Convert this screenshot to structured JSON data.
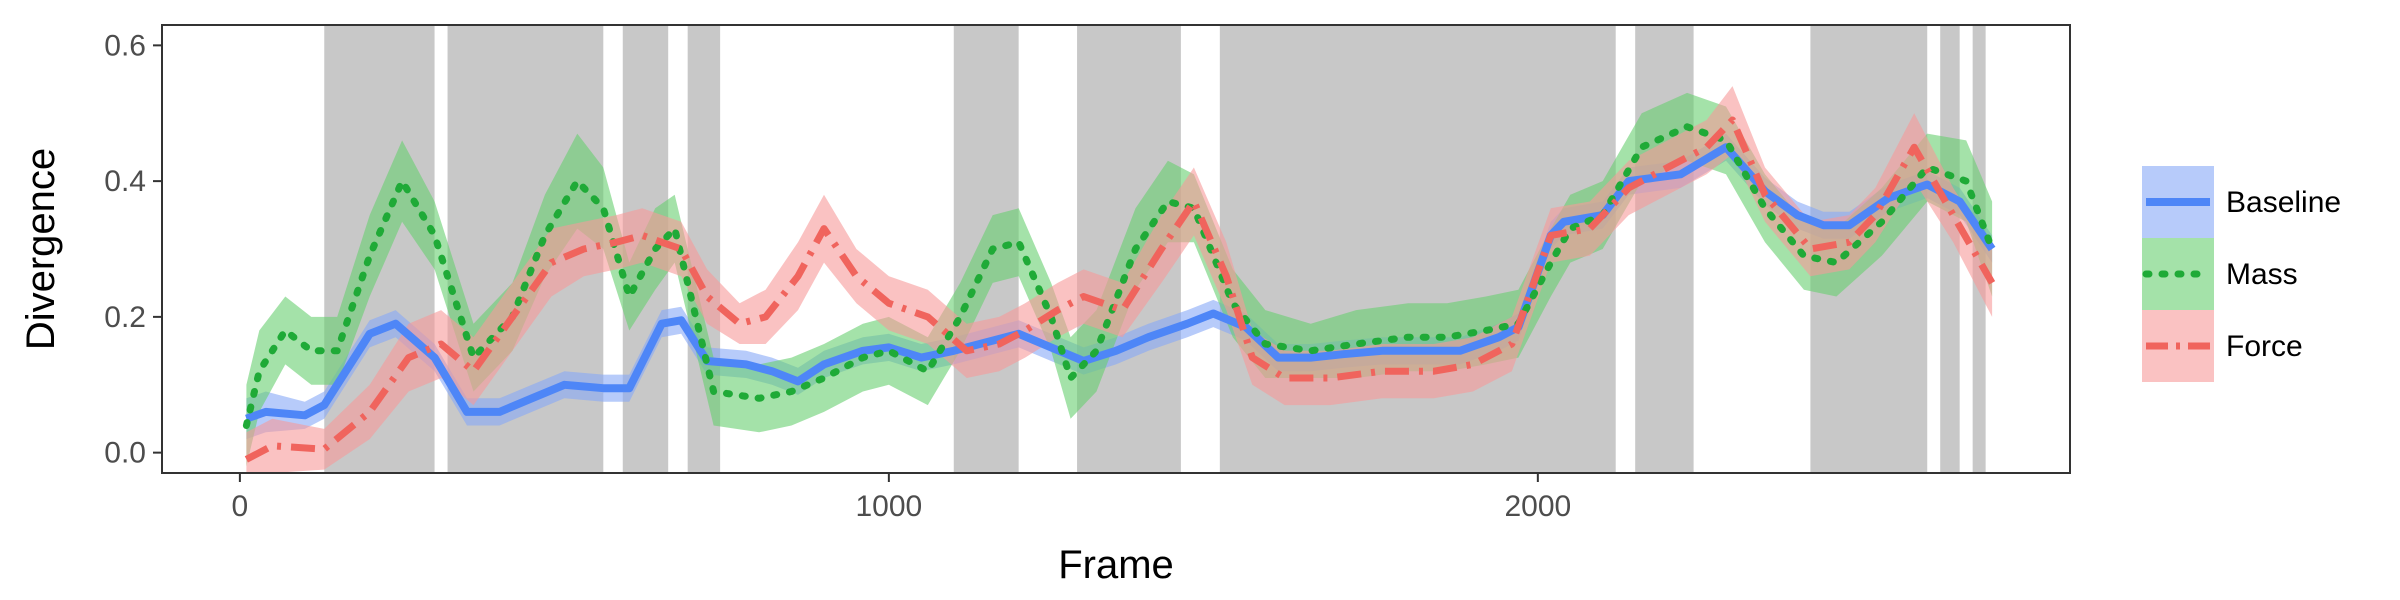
{
  "chart_data": {
    "type": "line",
    "xlabel": "Frame",
    "ylabel": "Divergence",
    "xlim": [
      -120,
      2820
    ],
    "ylim": [
      -0.03,
      0.63
    ],
    "x_ticks": [
      0,
      1000,
      2000
    ],
    "x_tick_labels": [
      "0",
      "1000",
      "2000"
    ],
    "y_ticks": [
      0.0,
      0.2,
      0.4,
      0.6
    ],
    "y_tick_labels": [
      "0.0",
      "0.2",
      "0.4",
      "0.6"
    ],
    "grid": false,
    "legend_position": "right",
    "shaded_intervals": [
      [
        130,
        300
      ],
      [
        320,
        560
      ],
      [
        590,
        660
      ],
      [
        690,
        740
      ],
      [
        1100,
        1200
      ],
      [
        1290,
        1450
      ],
      [
        1510,
        2120
      ],
      [
        2150,
        2240
      ],
      [
        2420,
        2600
      ],
      [
        2620,
        2650
      ],
      [
        2670,
        2690
      ]
    ],
    "shade_color": "#c8c8c8",
    "series": [
      {
        "name": "Baseline",
        "color": "#4e86f7",
        "band_color": "#87a9f7",
        "style": "solid",
        "points": [
          [
            10,
            0.05,
            0.03
          ],
          [
            40,
            0.06,
            0.03
          ],
          [
            100,
            0.055,
            0.02
          ],
          [
            130,
            0.07,
            0.02
          ],
          [
            200,
            0.175,
            0.02
          ],
          [
            240,
            0.19,
            0.02
          ],
          [
            300,
            0.14,
            0.02
          ],
          [
            350,
            0.06,
            0.02
          ],
          [
            400,
            0.06,
            0.02
          ],
          [
            450,
            0.08,
            0.02
          ],
          [
            500,
            0.1,
            0.02
          ],
          [
            560,
            0.095,
            0.02
          ],
          [
            600,
            0.095,
            0.02
          ],
          [
            650,
            0.19,
            0.02
          ],
          [
            680,
            0.195,
            0.02
          ],
          [
            720,
            0.135,
            0.02
          ],
          [
            780,
            0.13,
            0.02
          ],
          [
            820,
            0.12,
            0.02
          ],
          [
            860,
            0.105,
            0.02
          ],
          [
            900,
            0.13,
            0.02
          ],
          [
            960,
            0.15,
            0.02
          ],
          [
            1000,
            0.155,
            0.02
          ],
          [
            1050,
            0.14,
            0.02
          ],
          [
            1100,
            0.15,
            0.02
          ],
          [
            1160,
            0.165,
            0.02
          ],
          [
            1200,
            0.175,
            0.02
          ],
          [
            1250,
            0.155,
            0.02
          ],
          [
            1300,
            0.135,
            0.02
          ],
          [
            1350,
            0.15,
            0.02
          ],
          [
            1400,
            0.17,
            0.02
          ],
          [
            1460,
            0.19,
            0.02
          ],
          [
            1500,
            0.205,
            0.02
          ],
          [
            1550,
            0.185,
            0.02
          ],
          [
            1600,
            0.14,
            0.02
          ],
          [
            1650,
            0.14,
            0.02
          ],
          [
            1700,
            0.145,
            0.02
          ],
          [
            1760,
            0.15,
            0.02
          ],
          [
            1820,
            0.15,
            0.02
          ],
          [
            1880,
            0.15,
            0.02
          ],
          [
            1940,
            0.17,
            0.02
          ],
          [
            1970,
            0.185,
            0.02
          ],
          [
            2020,
            0.32,
            0.02
          ],
          [
            2040,
            0.34,
            0.02
          ],
          [
            2100,
            0.35,
            0.02
          ],
          [
            2140,
            0.4,
            0.02
          ],
          [
            2180,
            0.405,
            0.02
          ],
          [
            2220,
            0.41,
            0.02
          ],
          [
            2290,
            0.45,
            0.02
          ],
          [
            2350,
            0.385,
            0.02
          ],
          [
            2400,
            0.35,
            0.02
          ],
          [
            2440,
            0.335,
            0.02
          ],
          [
            2480,
            0.335,
            0.02
          ],
          [
            2540,
            0.375,
            0.02
          ],
          [
            2600,
            0.395,
            0.02
          ],
          [
            2650,
            0.37,
            0.02
          ],
          [
            2700,
            0.3,
            0.02
          ]
        ]
      },
      {
        "name": "Mass",
        "color": "#1faa37",
        "band_color": "#67cf6f",
        "style": "dotted",
        "points": [
          [
            10,
            0.04,
            0.06
          ],
          [
            30,
            0.12,
            0.06
          ],
          [
            70,
            0.18,
            0.05
          ],
          [
            110,
            0.15,
            0.05
          ],
          [
            150,
            0.15,
            0.05
          ],
          [
            200,
            0.29,
            0.06
          ],
          [
            250,
            0.4,
            0.06
          ],
          [
            300,
            0.32,
            0.05
          ],
          [
            360,
            0.14,
            0.05
          ],
          [
            420,
            0.2,
            0.05
          ],
          [
            470,
            0.32,
            0.06
          ],
          [
            520,
            0.4,
            0.07
          ],
          [
            560,
            0.36,
            0.06
          ],
          [
            600,
            0.23,
            0.05
          ],
          [
            640,
            0.3,
            0.06
          ],
          [
            670,
            0.33,
            0.05
          ],
          [
            730,
            0.09,
            0.05
          ],
          [
            800,
            0.08,
            0.05
          ],
          [
            850,
            0.09,
            0.05
          ],
          [
            900,
            0.11,
            0.05
          ],
          [
            960,
            0.14,
            0.05
          ],
          [
            1000,
            0.15,
            0.05
          ],
          [
            1060,
            0.12,
            0.05
          ],
          [
            1110,
            0.2,
            0.05
          ],
          [
            1160,
            0.3,
            0.05
          ],
          [
            1200,
            0.31,
            0.05
          ],
          [
            1250,
            0.2,
            0.05
          ],
          [
            1280,
            0.11,
            0.06
          ],
          [
            1320,
            0.15,
            0.06
          ],
          [
            1380,
            0.3,
            0.06
          ],
          [
            1430,
            0.37,
            0.06
          ],
          [
            1470,
            0.36,
            0.05
          ],
          [
            1530,
            0.22,
            0.05
          ],
          [
            1580,
            0.16,
            0.05
          ],
          [
            1650,
            0.15,
            0.04
          ],
          [
            1720,
            0.16,
            0.05
          ],
          [
            1800,
            0.17,
            0.05
          ],
          [
            1860,
            0.17,
            0.05
          ],
          [
            1920,
            0.18,
            0.05
          ],
          [
            1970,
            0.19,
            0.05
          ],
          [
            2020,
            0.28,
            0.05
          ],
          [
            2050,
            0.33,
            0.05
          ],
          [
            2100,
            0.35,
            0.05
          ],
          [
            2160,
            0.45,
            0.05
          ],
          [
            2230,
            0.48,
            0.05
          ],
          [
            2290,
            0.46,
            0.05
          ],
          [
            2350,
            0.36,
            0.05
          ],
          [
            2410,
            0.29,
            0.05
          ],
          [
            2460,
            0.28,
            0.05
          ],
          [
            2530,
            0.34,
            0.05
          ],
          [
            2600,
            0.42,
            0.05
          ],
          [
            2660,
            0.4,
            0.06
          ],
          [
            2700,
            0.3,
            0.07
          ]
        ]
      },
      {
        "name": "Force",
        "color": "#f0645d",
        "band_color": "#f79a99",
        "style": "dashdot",
        "points": [
          [
            10,
            -0.01,
            0.04
          ],
          [
            50,
            0.01,
            0.04
          ],
          [
            130,
            0.005,
            0.03
          ],
          [
            200,
            0.06,
            0.04
          ],
          [
            260,
            0.14,
            0.05
          ],
          [
            310,
            0.16,
            0.05
          ],
          [
            360,
            0.12,
            0.05
          ],
          [
            420,
            0.2,
            0.05
          ],
          [
            480,
            0.28,
            0.05
          ],
          [
            530,
            0.3,
            0.04
          ],
          [
            580,
            0.31,
            0.04
          ],
          [
            620,
            0.32,
            0.04
          ],
          [
            680,
            0.3,
            0.04
          ],
          [
            720,
            0.23,
            0.04
          ],
          [
            770,
            0.19,
            0.03
          ],
          [
            810,
            0.2,
            0.04
          ],
          [
            860,
            0.26,
            0.05
          ],
          [
            900,
            0.33,
            0.05
          ],
          [
            950,
            0.26,
            0.04
          ],
          [
            1000,
            0.22,
            0.04
          ],
          [
            1060,
            0.2,
            0.04
          ],
          [
            1120,
            0.15,
            0.04
          ],
          [
            1170,
            0.16,
            0.04
          ],
          [
            1210,
            0.18,
            0.04
          ],
          [
            1260,
            0.21,
            0.04
          ],
          [
            1300,
            0.23,
            0.04
          ],
          [
            1360,
            0.21,
            0.04
          ],
          [
            1420,
            0.3,
            0.05
          ],
          [
            1470,
            0.37,
            0.05
          ],
          [
            1520,
            0.26,
            0.05
          ],
          [
            1560,
            0.14,
            0.04
          ],
          [
            1610,
            0.11,
            0.04
          ],
          [
            1680,
            0.11,
            0.04
          ],
          [
            1760,
            0.12,
            0.04
          ],
          [
            1840,
            0.12,
            0.04
          ],
          [
            1900,
            0.13,
            0.04
          ],
          [
            1960,
            0.16,
            0.04
          ],
          [
            2020,
            0.32,
            0.04
          ],
          [
            2080,
            0.33,
            0.04
          ],
          [
            2140,
            0.39,
            0.04
          ],
          [
            2200,
            0.42,
            0.04
          ],
          [
            2260,
            0.45,
            0.04
          ],
          [
            2300,
            0.49,
            0.05
          ],
          [
            2350,
            0.38,
            0.04
          ],
          [
            2420,
            0.3,
            0.04
          ],
          [
            2480,
            0.31,
            0.04
          ],
          [
            2520,
            0.35,
            0.04
          ],
          [
            2580,
            0.45,
            0.05
          ],
          [
            2640,
            0.35,
            0.04
          ],
          [
            2700,
            0.25,
            0.05
          ]
        ]
      }
    ]
  }
}
